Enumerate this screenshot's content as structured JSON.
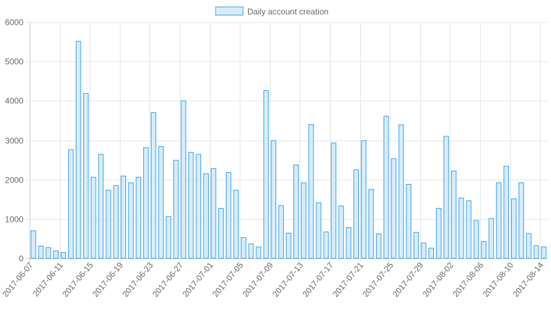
{
  "chart_data": {
    "type": "bar",
    "series": [
      {
        "name": "Daily account creation",
        "values": [
          700,
          310,
          270,
          190,
          150,
          2760,
          5510,
          4190,
          2060,
          2640,
          1730,
          1850,
          2090,
          1920,
          2060,
          2810,
          3700,
          2840,
          1060,
          2490,
          4000,
          2690,
          2640,
          2150,
          2280,
          1270,
          2180,
          1730,
          530,
          370,
          290,
          4260,
          2990,
          1340,
          640,
          2370,
          1920,
          3400,
          1410,
          670,
          2930,
          1330,
          780,
          2250,
          2990,
          1750,
          620,
          3610,
          2530,
          3390,
          1880,
          660,
          390,
          260,
          1270,
          3100,
          2220,
          1530,
          1460,
          960,
          430,
          1010,
          1920,
          2340,
          1510,
          1920,
          630,
          320,
          290
        ]
      }
    ],
    "x_start": "2017-06-07",
    "x_end": "2017-08-14",
    "x_tick_labels": [
      "2017-06-07",
      "2017-06-11",
      "2017-06-15",
      "2017-06-19",
      "2017-06-23",
      "2017-06-27",
      "2017-07-01",
      "2017-07-05",
      "2017-07-09",
      "2017-07-13",
      "2017-07-17",
      "2017-07-21",
      "2017-07-25",
      "2017-07-29",
      "2017-08-02",
      "2017-08-06",
      "2017-08-10",
      "2017-08-14"
    ],
    "y_ticks": [
      0,
      1000,
      2000,
      3000,
      4000,
      5000,
      6000
    ],
    "ylim": [
      0,
      6000
    ],
    "grid": true,
    "legend_position": "top-center",
    "colors": {
      "bar_fill": "#d7ecfb",
      "bar_stroke": "#36a2eb",
      "grid": "#e5e5e5",
      "axis": "#cccccc",
      "text": "#666666"
    }
  }
}
